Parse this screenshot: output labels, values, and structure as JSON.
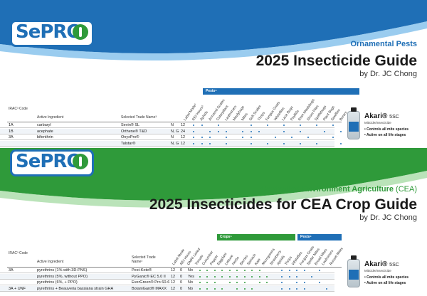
{
  "colors": {
    "sepro_blue": "#1f6fb6",
    "sepro_green": "#2f9a3a",
    "pest_band": "#1f6fb6",
    "crop_band": "#2f9a3a"
  },
  "top": {
    "logo": "SePRO",
    "subtitle": "Ornamental Pests",
    "title": "2025 Insecticide Guide",
    "byline": "by Dr. JC Chong",
    "columns": {
      "irac": "IRAC³ Code",
      "ingredient": "Active Ingredient",
      "trade": "Selected Trade Name³"
    },
    "diag_heads": [
      "Label Mode⁴",
      "REI Hours⁵",
      "Aphids",
      "Armored Scales",
      "Caterpillars",
      "Leafminers",
      "Mealybugs",
      "Mites",
      "Soft Scales",
      "Thrips",
      "Fungus Gnats",
      "Whiteflies",
      "Lace Bugs",
      "Psyllids",
      "Root Mealybugs",
      "Shore Flies",
      "Spittlebugs",
      "Plant Bugs",
      "Sawflies",
      "Borers",
      "Beetles"
    ],
    "pests_label": "Pests⁶",
    "rows": [
      {
        "irac": "1A",
        "ingredient": "carbaryl",
        "trade": "Sevin® SL",
        "mode": "N",
        "rei": "12",
        "dots": [
          2,
          3,
          5,
          9,
          11,
          13,
          15,
          17,
          19
        ]
      },
      {
        "irac": "1B",
        "ingredient": "acephate",
        "trade": "Orthene® T&D",
        "mode": "N, G",
        "rei": "24",
        "dots": [
          2,
          4,
          5,
          6,
          8,
          9,
          10,
          13,
          15,
          18,
          20
        ]
      },
      {
        "irac": "3A",
        "ingredient": "bifenthrin",
        "trade": "OnyxPro®",
        "mode": "N",
        "rei": "12",
        "dots": [
          2,
          3,
          4,
          6,
          8,
          9,
          12,
          14,
          16,
          19
        ]
      },
      {
        "irac": "",
        "ingredient": "",
        "trade": "Talstar®",
        "mode": "N, G",
        "rei": "12",
        "dots": [
          2,
          3,
          4,
          6,
          9,
          11,
          13,
          15,
          17,
          20
        ]
      }
    ],
    "product": {
      "name": "Akari®",
      "formulation": "5SC",
      "type": "Miticide/Insecticide",
      "bullets": [
        "• Controls all mite species",
        "• Active on all life stages"
      ]
    }
  },
  "bottom": {
    "logo": "SePRO",
    "subtitle": "Controlled Environment Agriculture",
    "subtitle_abbr": "(CEA)",
    "title": "2025 Insecticides for CEA Crop Guide",
    "byline": "by Dr. JC Chong",
    "columns": {
      "irac": "IRAC³ Code",
      "ingredient": "Active Ingredient",
      "trade": "Selected Trade Name³"
    },
    "diag_heads": [
      "Label Mode",
      "REI Hours",
      "OMRI Listed",
      "Tomato",
      "Cucumber",
      "Pepper",
      "Eggplant",
      "Lettuce",
      "Herbs",
      "Berries",
      "Spinach",
      "Kale",
      "Microgreens",
      "Strawberry",
      "Aphids",
      "Thrips",
      "Whiteflies",
      "Fungus Gnats",
      "Spider Mites",
      "Broad Mites",
      "Leafminers",
      "Russet Mites"
    ],
    "crops_label": "Crops⁵",
    "pests_label": "Pests⁶",
    "rows": [
      {
        "irac": "3A",
        "ingredient": "pyrethrins (1% with 3D-PNS)",
        "trade": "Pest-Kote®",
        "mode": "12",
        "rei": "0",
        "omri": "No",
        "dots": [
          3,
          4,
          5,
          6,
          7,
          8,
          9,
          10,
          11,
          14,
          15,
          16,
          17,
          19
        ]
      },
      {
        "irac": "",
        "ingredient": "pyrethrins (5%, without PPO)",
        "trade": "PyGanic® EC 5.0 II",
        "mode": "12",
        "rei": "0",
        "omri": "Yes",
        "dots": [
          3,
          4,
          5,
          6,
          7,
          8,
          9,
          10,
          11,
          12,
          14,
          15,
          16,
          18
        ]
      },
      {
        "irac": "",
        "ingredient": "pyrethrins (6%, + PPO)",
        "trade": "EverGreen® Pro 60-6",
        "mode": "12",
        "rei": "0",
        "omri": "No",
        "dots": [
          3,
          4,
          5,
          7,
          8,
          9,
          11,
          12,
          14,
          16,
          17,
          19
        ]
      },
      {
        "irac": "3A + UNF",
        "ingredient": "pyrethrins + Beauveria bassiana strain GHA",
        "trade": "BotaniGard® MAXX",
        "mode": "12",
        "rei": "0",
        "omri": "No",
        "dots": [
          3,
          4,
          5,
          6,
          8,
          9,
          10,
          14,
          15,
          16,
          17,
          20
        ]
      }
    ],
    "product": {
      "name": "Akari®",
      "formulation": "5SC",
      "type": "Miticide/Insecticide",
      "bullets": [
        "• Controls all mite species",
        "• Active on all life stages"
      ]
    }
  }
}
